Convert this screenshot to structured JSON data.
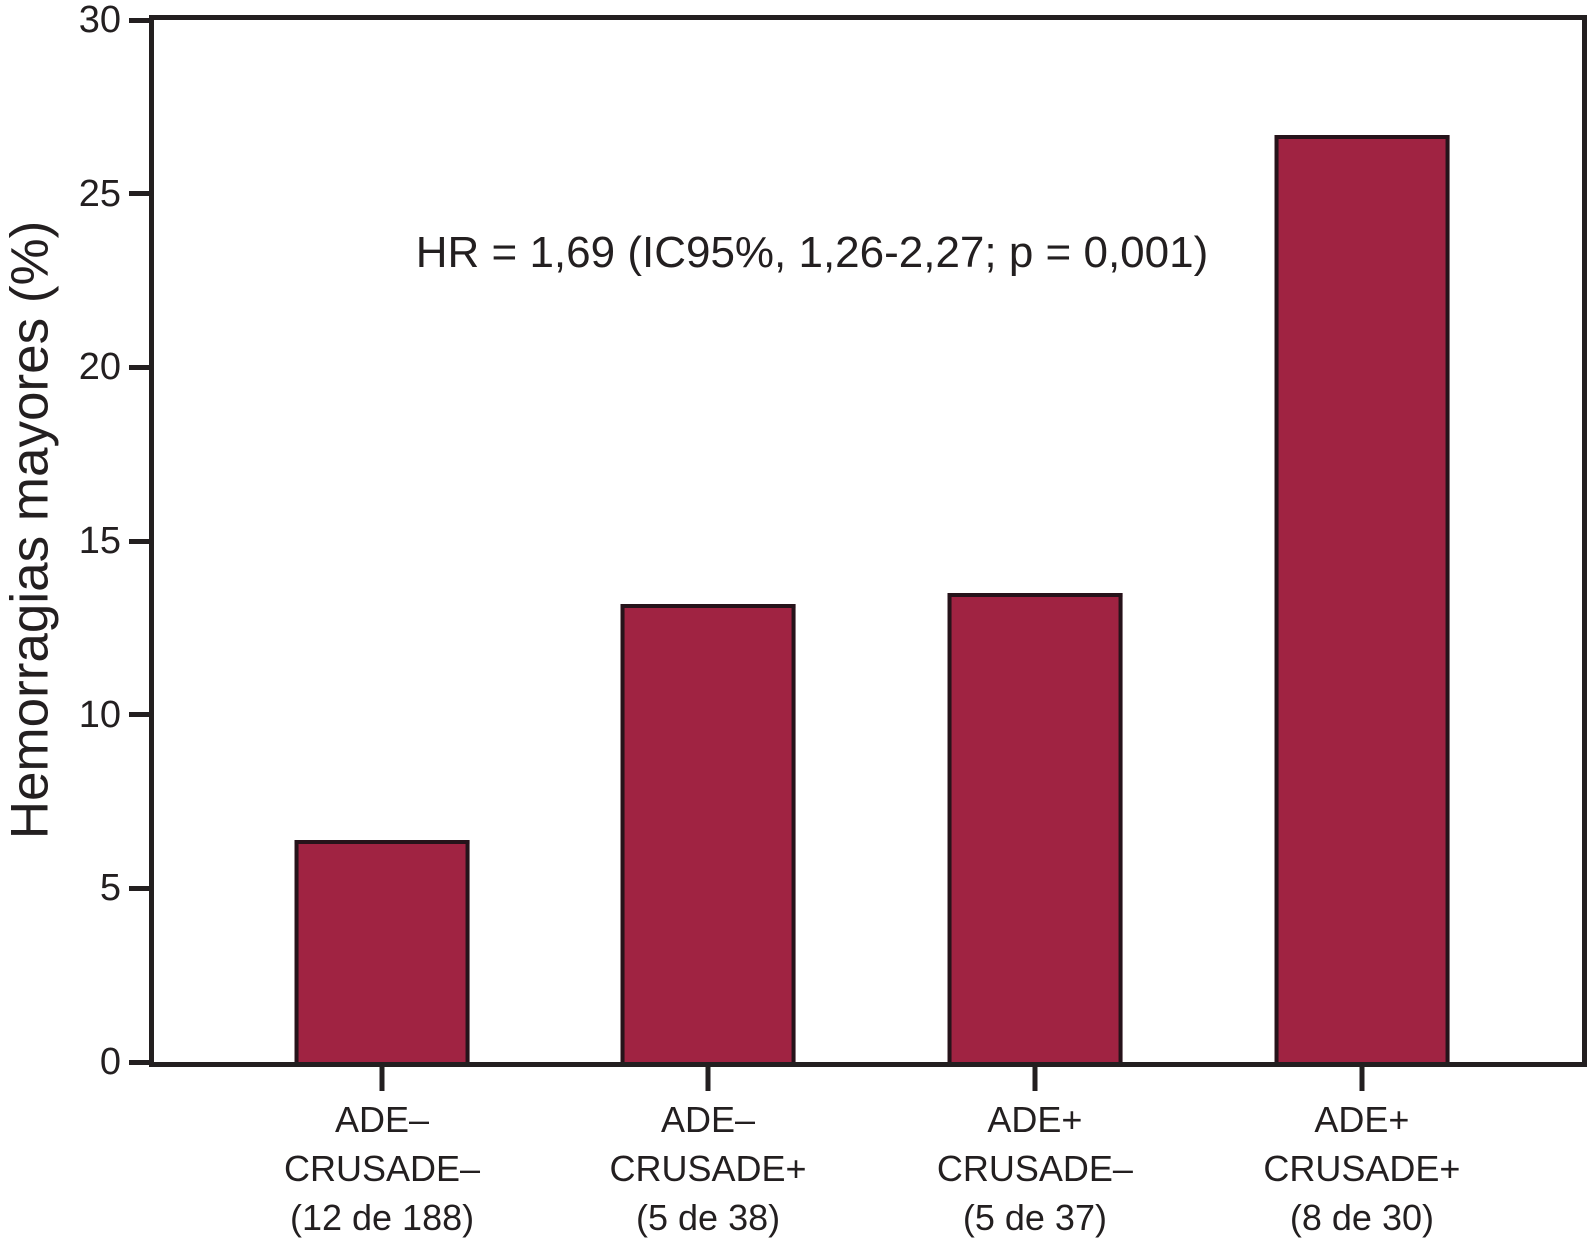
{
  "chart_data": {
    "type": "bar",
    "title": "",
    "xlabel": "",
    "ylabel": "Hemorragias mayores (%)",
    "ylim": [
      0,
      30
    ],
    "yticks": [
      0,
      5,
      10,
      15,
      20,
      25,
      30
    ],
    "grid": false,
    "legend": "none",
    "annotation": "HR = 1,69 (IC95%, 1,26-2,27; p = 0,001)",
    "bar_color": "#a02342",
    "bar_border_color": "#26131a",
    "axis_color": "#231f20",
    "categories": [
      {
        "label": "ADE– CRUSADE– (12 de 188)",
        "lines": [
          "ADE–",
          "CRUSADE–",
          "(12 de 188)"
        ],
        "events": 12,
        "total": 188,
        "value_pct": 6.4
      },
      {
        "label": "ADE– CRUSADE+ (5 de 38)",
        "lines": [
          "ADE–",
          "CRUSADE+",
          "(5 de 38)"
        ],
        "events": 5,
        "total": 38,
        "value_pct": 13.2
      },
      {
        "label": "ADE+ CRUSADE– (5 de 37)",
        "lines": [
          "ADE+",
          "CRUSADE–",
          "(5 de 37)"
        ],
        "events": 5,
        "total": 37,
        "value_pct": 13.5
      },
      {
        "label": "ADE+ CRUSADE+ (8 de 30)",
        "lines": [
          "ADE+",
          "CRUSADE+",
          "(8 de 30)"
        ],
        "events": 8,
        "total": 30,
        "value_pct": 26.7
      }
    ]
  }
}
